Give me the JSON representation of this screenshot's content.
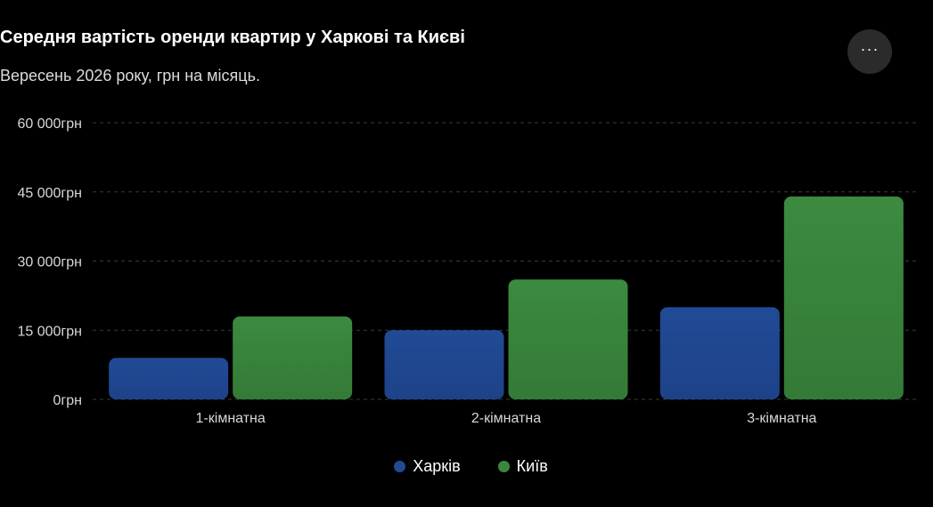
{
  "title": "Середня вартість оренди квартир у Харкові та Києві",
  "subtitle": "Вересень 2026 року, грн на місяць.",
  "menu_icon": "more-horizontal-icon",
  "menu_glyph": "···",
  "chart_data": {
    "type": "bar",
    "categories": [
      "1-кімнатна",
      "2-кімнатна",
      "3-кімнатна"
    ],
    "series": [
      {
        "name": "Харків",
        "values": [
          9000,
          15000,
          20000
        ],
        "color": "#214a93"
      },
      {
        "name": "Київ",
        "values": [
          18000,
          26000,
          44000
        ],
        "color": "#3b873e"
      }
    ],
    "ylim": [
      0,
      60000
    ],
    "yticks": [
      0,
      15000,
      30000,
      45000,
      60000
    ],
    "ytick_labels": [
      "0грн",
      "15 000грн",
      "30 000грн",
      "45 000грн",
      "60 000грн"
    ],
    "grid": true,
    "legend_position": "bottom"
  }
}
